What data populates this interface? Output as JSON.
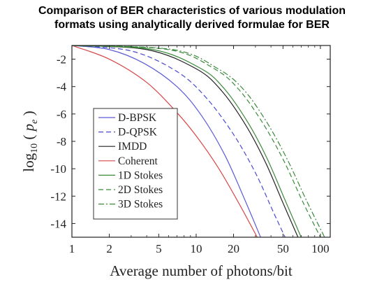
{
  "chart_data": {
    "type": "line",
    "title_line1": "Comparison of BER characteristics of various modulation",
    "title_line2": "formats using analytically derived formulae for BER",
    "xlabel": "Average number of photons/bit",
    "ylabel_base": "log",
    "ylabel_sub": "10",
    "ylabel_var": "p",
    "ylabel_var_sub": "e",
    "xscale": "log",
    "xlim": [
      1,
      120
    ],
    "ylim": [
      -15,
      -1
    ],
    "xticks": [
      1,
      2,
      5,
      10,
      20,
      50,
      100
    ],
    "xtick_labels": [
      "1",
      "2",
      "5",
      "10",
      "20",
      "50",
      "100"
    ],
    "yticks": [
      -2,
      -4,
      -6,
      -8,
      -10,
      -12,
      -14
    ],
    "ytick_labels": [
      "-2",
      "-4",
      "-6",
      "-8",
      "-10",
      "-12",
      "-14"
    ],
    "grid": false,
    "legend_position": "left",
    "series": [
      {
        "name": "D-BPSK",
        "color": "#5a5ad8",
        "dash": "solid",
        "x": [
          1,
          2,
          3.8,
          7,
          11,
          17,
          25,
          33
        ],
        "y": [
          -1.0,
          -1.3,
          -2.3,
          -4.0,
          -6.1,
          -9.0,
          -12.4,
          -15.0
        ]
      },
      {
        "name": "D-QPSK",
        "color": "#4a4acf",
        "dash": "dashed",
        "x": [
          1,
          3,
          7,
          12,
          20,
          30,
          42,
          52
        ],
        "y": [
          -1.0,
          -1.4,
          -2.9,
          -4.8,
          -7.5,
          -10.3,
          -13.2,
          -15.0
        ]
      },
      {
        "name": "IMDD",
        "color": "#222222",
        "dash": "solid",
        "x": [
          1,
          4,
          10,
          16,
          25,
          36,
          50,
          66
        ],
        "y": [
          -1.0,
          -1.3,
          -2.7,
          -4.3,
          -6.8,
          -9.5,
          -12.5,
          -15.0
        ]
      },
      {
        "name": "Coherent",
        "color": "#d84848",
        "dash": "solid",
        "x": [
          1,
          2,
          4,
          7,
          10,
          15,
          22,
          31
        ],
        "y": [
          -1.0,
          -2.0,
          -3.7,
          -5.9,
          -7.6,
          -9.9,
          -12.5,
          -15.0
        ]
      },
      {
        "name": "1D Stokes",
        "color": "#3a8a3a",
        "dash": "solid",
        "x": [
          1,
          4.5,
          11,
          17,
          26,
          37,
          52,
          70
        ],
        "y": [
          -1.0,
          -1.3,
          -2.7,
          -4.2,
          -6.6,
          -9.2,
          -12.3,
          -15.0
        ]
      },
      {
        "name": "2D Stokes",
        "color": "#3a8a3a",
        "dash": "dashed",
        "x": [
          1,
          6,
          14,
          22,
          34,
          50,
          72,
          100
        ],
        "y": [
          -1.0,
          -1.3,
          -2.7,
          -4.2,
          -6.6,
          -9.3,
          -12.4,
          -15.0
        ]
      },
      {
        "name": "3D Stokes",
        "color": "#3a8a3a",
        "dash": "dashdot",
        "x": [
          1,
          6.5,
          15,
          24,
          37,
          54,
          78,
          108
        ],
        "y": [
          -1.0,
          -1.3,
          -2.7,
          -4.2,
          -6.6,
          -9.3,
          -12.4,
          -15.0
        ]
      }
    ]
  }
}
